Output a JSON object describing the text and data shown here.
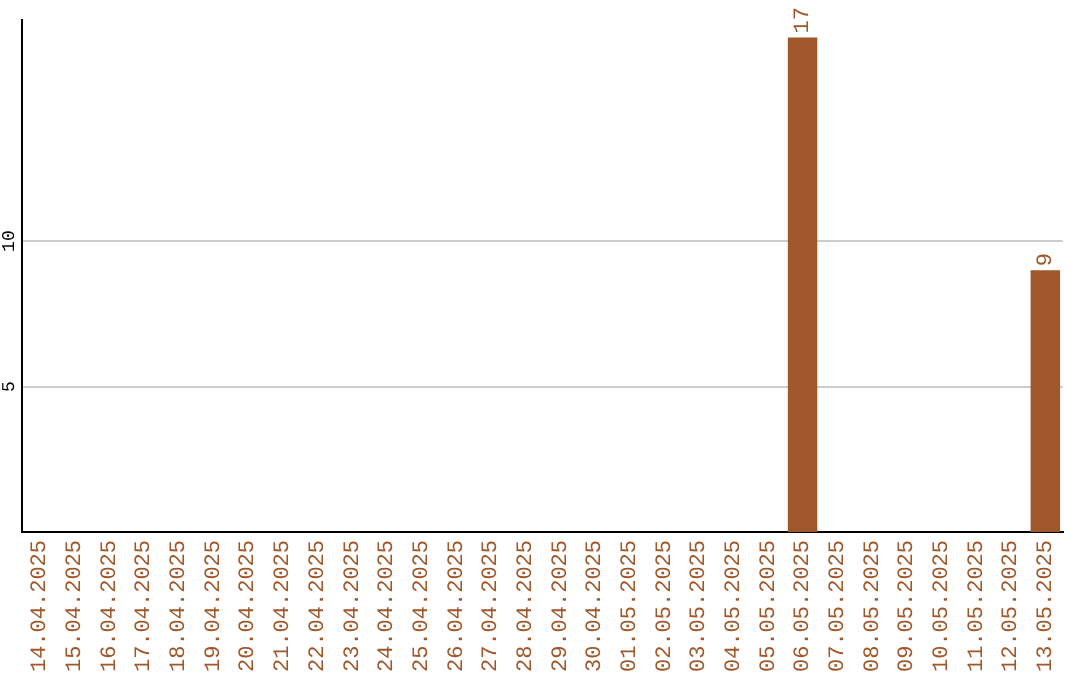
{
  "chart_data": {
    "type": "bar",
    "categories": [
      "14.04.2025",
      "15.04.2025",
      "16.04.2025",
      "17.04.2025",
      "18.04.2025",
      "19.04.2025",
      "20.04.2025",
      "21.04.2025",
      "22.04.2025",
      "23.04.2025",
      "24.04.2025",
      "25.04.2025",
      "26.04.2025",
      "27.04.2025",
      "28.04.2025",
      "29.04.2025",
      "30.04.2025",
      "01.05.2025",
      "02.05.2025",
      "03.05.2025",
      "04.05.2025",
      "05.05.2025",
      "06.05.2025",
      "07.05.2025",
      "08.05.2025",
      "09.05.2025",
      "10.05.2025",
      "11.05.2025",
      "12.05.2025",
      "13.05.2025"
    ],
    "values": [
      0,
      0,
      0,
      0,
      0,
      0,
      0,
      0,
      0,
      0,
      0,
      0,
      0,
      0,
      0,
      0,
      0,
      0,
      0,
      0,
      0,
      0,
      17,
      0,
      0,
      0,
      0,
      0,
      0,
      9
    ],
    "value_labels": [
      null,
      null,
      null,
      null,
      null,
      null,
      null,
      null,
      null,
      null,
      null,
      null,
      null,
      null,
      null,
      null,
      null,
      null,
      null,
      null,
      null,
      null,
      "17",
      null,
      null,
      null,
      null,
      null,
      null,
      "9"
    ],
    "color": "#a0582a",
    "ylim": [
      0,
      17.6
    ],
    "yticks": [
      5,
      10
    ],
    "grid": "y",
    "legend": false
  }
}
